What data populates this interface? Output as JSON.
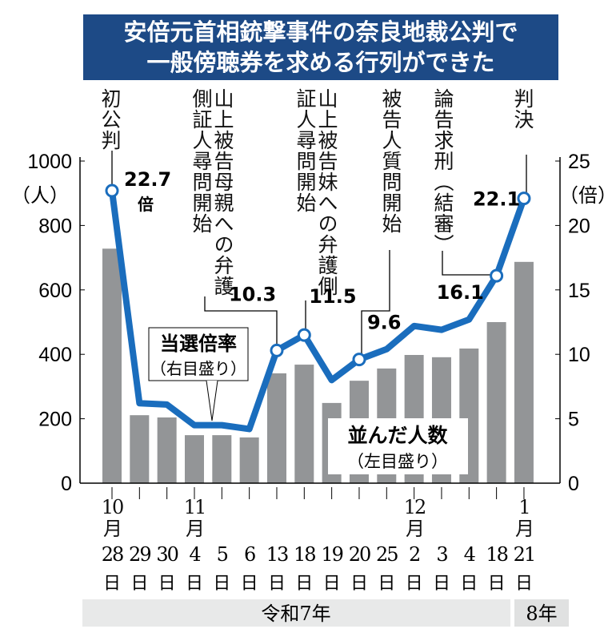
{
  "title": [
    "安倍元首相銃撃事件の奈良地裁公判で",
    "一般傍聴券を求める行列ができた"
  ],
  "chart_data": {
    "type": "bar+line",
    "categories": [
      "10月28日",
      "29日",
      "30日",
      "11月4日",
      "5日",
      "6日",
      "13日",
      "18日",
      "19日",
      "20日",
      "25日",
      "12月2日",
      "3日",
      "4日",
      "18日",
      "1月21日"
    ],
    "month_labels": {
      "0": "10月",
      "3": "11月",
      "11": "12月",
      "15": "1月"
    },
    "day_labels": [
      "28",
      "29",
      "30",
      "4",
      "5",
      "6",
      "13",
      "18",
      "19",
      "20",
      "25",
      "2",
      "3",
      "4",
      "18",
      "21"
    ],
    "day_suffix": "日",
    "series": [
      {
        "name": "並んだ人数",
        "sublabel": "（左目盛り）",
        "axis": "left",
        "type": "bar",
        "color": "#939597",
        "values": [
          728,
          211,
          204,
          149,
          149,
          142,
          341,
          368,
          249,
          318,
          356,
          398,
          391,
          418,
          500,
          687
        ]
      },
      {
        "name": "当選倍率",
        "sublabel": "（右目盛り）",
        "axis": "right",
        "type": "line",
        "color": "#1a6dbd",
        "values": [
          22.7,
          6.2,
          6.1,
          4.5,
          4.5,
          4.2,
          10.3,
          11.5,
          8.0,
          9.6,
          10.4,
          12.2,
          11.9,
          12.7,
          16.1,
          22.1
        ],
        "marked": [
          0,
          6,
          7,
          9,
          14,
          15
        ]
      }
    ],
    "left_axis": {
      "unit": "（人）",
      "ticks": [
        0,
        200,
        400,
        600,
        800,
        1000
      ],
      "range": [
        0,
        1000
      ]
    },
    "right_axis": {
      "unit": "（倍）",
      "ticks": [
        0,
        5,
        10,
        15,
        20,
        25
      ],
      "range": [
        0,
        25
      ]
    },
    "data_labels": {
      "0": "22.7",
      "6": "10.3",
      "7": "11.5",
      "9": "9.6",
      "14": "16.1",
      "15": "22.1"
    },
    "first_label_unit": "倍",
    "annotations": [
      "初公判",
      "山上被告母親への弁護側証人尋問開始",
      "山上被告妹への弁護側証人尋問開始",
      "被告人質問開始",
      "論告求刑（結審）",
      "判決"
    ],
    "era": [
      "令和7年",
      "8年"
    ]
  }
}
